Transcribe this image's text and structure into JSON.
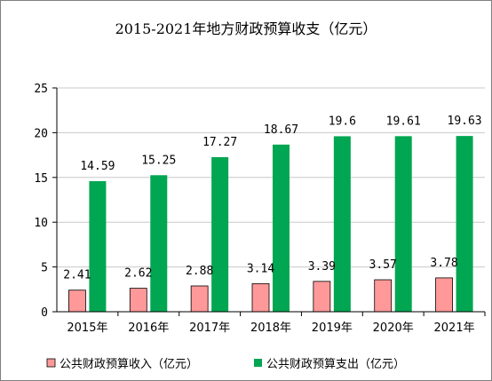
{
  "chart_data": {
    "type": "bar",
    "title": "2015-2021年地方财政预算收支（亿元）",
    "categories": [
      "2015年",
      "2016年",
      "2017年",
      "2018年",
      "2019年",
      "2020年",
      "2021年"
    ],
    "series": [
      {
        "name": "公共财政预算收入（亿元）",
        "color": "#ff9999",
        "values": [
          2.41,
          2.62,
          2.88,
          3.14,
          3.39,
          3.57,
          3.78
        ],
        "labels": [
          "2.41",
          "2.62",
          "2.88",
          "3.14",
          "3.39",
          "3.57",
          "3.78"
        ]
      },
      {
        "name": "公共财政预算支出（亿元）",
        "color": "#00a651",
        "values": [
          14.59,
          15.25,
          17.27,
          18.67,
          19.6,
          19.61,
          19.63
        ],
        "labels": [
          "14.59",
          "15.25",
          "17.27",
          "18.67",
          "19.6",
          "19.61",
          "19.63"
        ]
      }
    ],
    "ylim": [
      0,
      25
    ],
    "yticks": [
      0,
      5,
      10,
      15,
      20,
      25
    ],
    "ytick_labels": [
      "0",
      "5",
      "10",
      "15",
      "20",
      "25"
    ],
    "xlabel": "",
    "ylabel": "",
    "grid": true,
    "legend_position": "bottom"
  }
}
